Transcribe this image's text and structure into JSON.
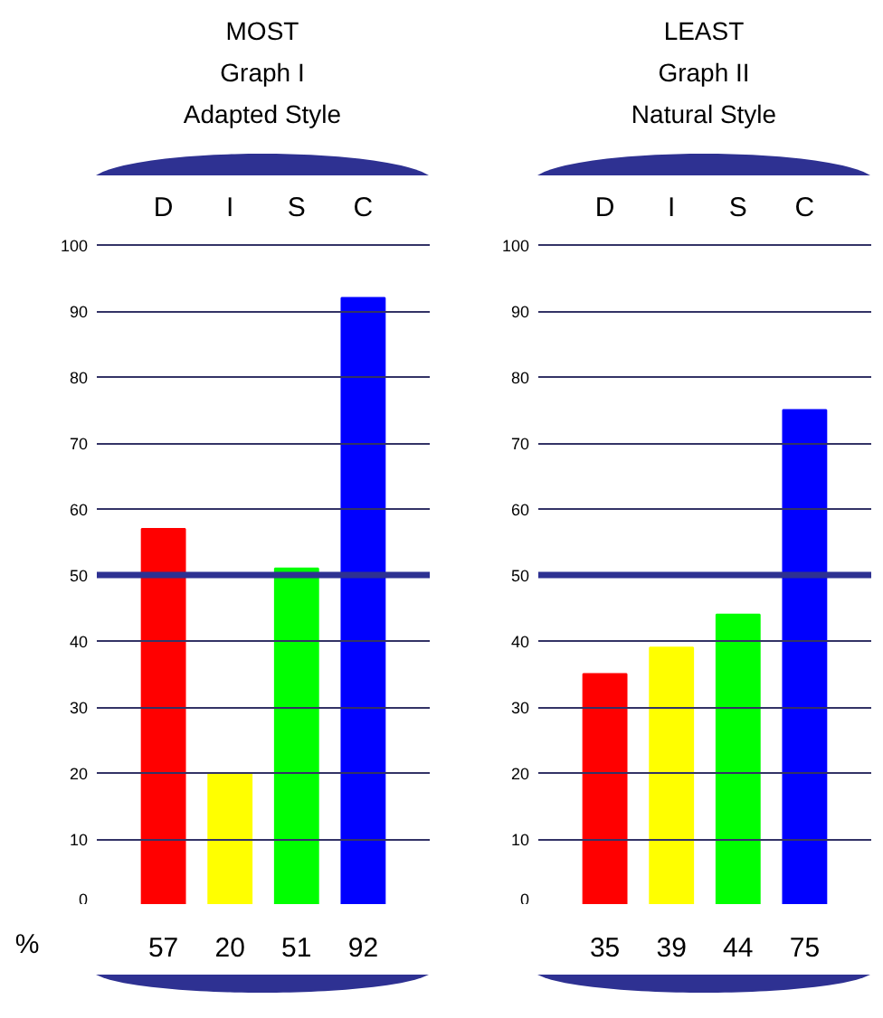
{
  "chart_data": [
    {
      "type": "bar",
      "title": "MOST",
      "subtitle": "Graph I\nAdapted Style",
      "categories": [
        "D",
        "I",
        "S",
        "C"
      ],
      "values": [
        57,
        20,
        51,
        92
      ],
      "colors": [
        "#ff0000",
        "#ffff00",
        "#00ff00",
        "#0000ff"
      ],
      "data_labels": true,
      "ylim": [
        0,
        100
      ],
      "yticks": [
        0,
        10,
        20,
        30,
        40,
        50,
        60,
        70,
        80,
        90,
        100
      ],
      "grid": "y",
      "ref_lines": [
        {
          "axis": "y",
          "value": 50,
          "color": "#2e3192"
        }
      ],
      "annotations": [
        "%"
      ]
    },
    {
      "type": "bar",
      "title": "LEAST",
      "subtitle": "Graph II\nNatural Style",
      "categories": [
        "D",
        "I",
        "S",
        "C"
      ],
      "values": [
        35,
        39,
        44,
        75
      ],
      "colors": [
        "#ff0000",
        "#ffff00",
        "#00ff00",
        "#0000ff"
      ],
      "data_labels": true,
      "ylim": [
        0,
        100
      ],
      "yticks": [
        0,
        10,
        20,
        30,
        40,
        50,
        60,
        70,
        80,
        90,
        100
      ],
      "grid": "y",
      "ref_lines": [
        {
          "axis": "y",
          "value": 50,
          "color": "#2e3192"
        }
      ]
    }
  ]
}
